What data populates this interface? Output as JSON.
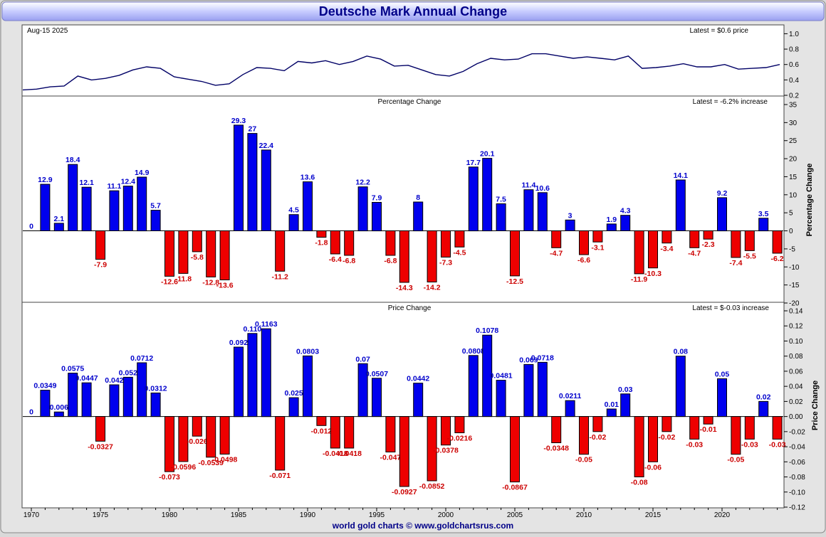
{
  "title": "Deutsche Mark Annual Change",
  "footer": "world gold charts © www.goldchartsrus.com",
  "colors": {
    "positive": "#0000ee",
    "negative": "#ee0000",
    "title": "#000088",
    "line": "#000066",
    "label_blue": "#0000cc",
    "label_red": "#cc0000"
  },
  "chart_data": [
    {
      "type": "line",
      "title": "",
      "date_label": "Aug-15  2025",
      "latest_label": "Latest = $0.6 price",
      "ylim": [
        0.2,
        1.05
      ],
      "yticks": [
        0.2,
        0.4,
        0.6,
        0.8,
        1.0
      ],
      "ytick_labels": [
        "0.2",
        "0.4",
        "0.6",
        "0.8",
        "1.0"
      ],
      "x": [
        1970,
        1971,
        1972,
        1973,
        1974,
        1975,
        1976,
        1977,
        1978,
        1979,
        1980,
        1981,
        1982,
        1983,
        1984,
        1985,
        1986,
        1987,
        1988,
        1989,
        1990,
        1991,
        1992,
        1993,
        1994,
        1995,
        1996,
        1997,
        1998,
        1999,
        2000,
        2001,
        2002,
        2003,
        2004,
        2005,
        2006,
        2007,
        2008,
        2009,
        2010,
        2011,
        2012,
        2013,
        2014,
        2015,
        2016,
        2017,
        2018,
        2019,
        2020,
        2021,
        2022,
        2023,
        2024,
        2025
      ],
      "values": [
        0.27,
        0.28,
        0.31,
        0.32,
        0.45,
        0.4,
        0.42,
        0.46,
        0.53,
        0.57,
        0.55,
        0.44,
        0.41,
        0.38,
        0.33,
        0.35,
        0.47,
        0.56,
        0.55,
        0.52,
        0.64,
        0.62,
        0.65,
        0.6,
        0.64,
        0.71,
        0.67,
        0.58,
        0.59,
        0.53,
        0.47,
        0.45,
        0.51,
        0.61,
        0.68,
        0.66,
        0.67,
        0.74,
        0.74,
        0.71,
        0.68,
        0.7,
        0.68,
        0.66,
        0.71,
        0.55,
        0.56,
        0.58,
        0.61,
        0.57,
        0.57,
        0.6,
        0.54,
        0.55,
        0.56,
        0.6
      ]
    },
    {
      "type": "bar",
      "title": "Percentage Change",
      "latest_label": "Latest = -6.2% increase",
      "ylabel": "Percentage Change",
      "ylim": [
        -20,
        35
      ],
      "yticks": [
        -20,
        -15,
        -10,
        -5,
        0,
        5,
        10,
        15,
        20,
        25,
        30,
        35
      ],
      "categories": [
        1970,
        1971,
        1972,
        1973,
        1974,
        1975,
        1976,
        1977,
        1978,
        1979,
        1980,
        1981,
        1982,
        1983,
        1984,
        1985,
        1986,
        1987,
        1988,
        1989,
        1990,
        1991,
        1992,
        1993,
        1994,
        1995,
        1996,
        1997,
        1998,
        1999,
        2000,
        2001,
        2002,
        2003,
        2004,
        2005,
        2006,
        2007,
        2008,
        2009,
        2010,
        2011,
        2012,
        2013,
        2014,
        2015,
        2016,
        2017,
        2018,
        2019,
        2020,
        2021,
        2022,
        2023,
        2024
      ],
      "values": [
        0,
        12.9,
        2.1,
        18.4,
        12.1,
        -7.9,
        11.1,
        12.4,
        14.9,
        5.7,
        -12.6,
        -11.8,
        -5.8,
        -12.8,
        -13.6,
        29.3,
        27,
        22.4,
        -11.2,
        4.5,
        13.6,
        -1.8,
        -6.4,
        -6.8,
        12.2,
        7.9,
        -6.8,
        -14.3,
        8,
        -14.2,
        -7.3,
        -4.5,
        17.7,
        20.1,
        7.5,
        -12.5,
        11.4,
        10.6,
        -4.7,
        3,
        -6.6,
        -3.1,
        1.9,
        4.3,
        -11.9,
        -10.3,
        -3.4,
        14.1,
        -4.7,
        -2.3,
        9.2,
        -7.4,
        -5.5,
        3.5,
        -6.2
      ],
      "labels": [
        "0",
        "12.9",
        "2.1",
        "18.4",
        "12.1",
        "-7.9",
        "11.1",
        "12.4",
        "14.9",
        "5.7",
        "-12.6",
        "-11.8",
        "-5.8",
        "-12.8",
        "-13.6",
        "29.3",
        "27",
        "22.4",
        "-11.2",
        "4.5",
        "13.6",
        "-1.8",
        "-6.4",
        "-6.8",
        "12.2",
        "7.9",
        "-6.8",
        "-14.3",
        "8",
        "-14.2",
        "-7.3",
        "-4.5",
        "17.7",
        "20.1",
        "7.5",
        "-12.5",
        "11.4",
        "10.6",
        "-4.7",
        "3",
        "-6.6",
        "-3.1",
        "1.9",
        "4.3",
        "-11.9",
        "-10.3",
        "-3.4",
        "14.1",
        "-4.7",
        "-2.3",
        "9.2",
        "-7.4",
        "-5.5",
        "3.5",
        "-6.2"
      ]
    },
    {
      "type": "bar",
      "title": "Price Change",
      "latest_label": "Latest = $-0.03 increase",
      "ylabel": "Price Change",
      "ylim": [
        -0.12,
        0.14
      ],
      "yticks": [
        -0.12,
        -0.1,
        -0.08,
        -0.06,
        -0.04,
        -0.02,
        0,
        0.02,
        0.04,
        0.06,
        0.08,
        0.1,
        0.12,
        0.14
      ],
      "ytick_labels": [
        "-0.12",
        "-0.10",
        "-0.08",
        "-0.06",
        "-0.04",
        "-0.02",
        "0.00",
        "0.02",
        "0.04",
        "0.06",
        "0.08",
        "0.10",
        "0.12",
        "0.14"
      ],
      "categories": [
        1970,
        1971,
        1972,
        1973,
        1974,
        1975,
        1976,
        1977,
        1978,
        1979,
        1980,
        1981,
        1982,
        1983,
        1984,
        1985,
        1986,
        1987,
        1988,
        1989,
        1990,
        1991,
        1992,
        1993,
        1994,
        1995,
        1996,
        1997,
        1998,
        1999,
        2000,
        2001,
        2002,
        2003,
        2004,
        2005,
        2006,
        2007,
        2008,
        2009,
        2010,
        2011,
        2012,
        2013,
        2014,
        2015,
        2016,
        2017,
        2018,
        2019,
        2020,
        2021,
        2022,
        2023,
        2024
      ],
      "values": [
        0,
        0.0349,
        0.006,
        0.0575,
        0.0447,
        -0.0327,
        0.042,
        0.052,
        0.0712,
        0.0312,
        -0.073,
        -0.0596,
        -0.026,
        -0.0539,
        -0.0498,
        0.092,
        0.11,
        0.1163,
        -0.071,
        0.025,
        0.0803,
        -0.012,
        -0.0418,
        -0.0418,
        0.07,
        0.0507,
        -0.047,
        -0.0927,
        0.0442,
        -0.0852,
        -0.0378,
        -0.0216,
        0.0808,
        0.1078,
        0.0481,
        -0.0867,
        0.069,
        0.0718,
        -0.0348,
        0.0211,
        -0.05,
        -0.02,
        0.01,
        0.03,
        -0.08,
        -0.06,
        -0.02,
        0.08,
        -0.03,
        -0.01,
        0.05,
        -0.05,
        -0.03,
        0.02,
        -0.03
      ],
      "labels": [
        "0",
        "0.0349",
        "0.006",
        "0.0575",
        "0.0447",
        "-0.0327",
        "0.042",
        "0.052",
        "0.0712",
        "0.0312",
        "-0.073",
        "-0.0596",
        "-0.026",
        "-0.0539",
        "-0.0498",
        "0.092",
        "0.110",
        "0.1163",
        "-0.071",
        "0.025",
        "0.0803",
        "-0.012",
        "-0.0418",
        "-0.0418",
        "0.07",
        "0.0507",
        "-0.047",
        "-0.0927",
        "0.0442",
        "-0.0852",
        "-0.0378",
        "-0.0216",
        "0.0808",
        "0.1078",
        "0.0481",
        "-0.0867",
        "0.069",
        "0.0718",
        "-0.0348",
        "0.0211",
        "-0.05",
        "-0.02",
        "0.01",
        "0.03",
        "-0.08",
        "-0.06",
        "-0.02",
        "0.08",
        "-0.03",
        "-0.01",
        "0.05",
        "-0.05",
        "-0.03",
        "0.02",
        "-0.03"
      ]
    }
  ],
  "x_axis": {
    "ticks": [
      1970,
      1975,
      1980,
      1985,
      1990,
      1995,
      2000,
      2005,
      2010,
      2015,
      2020
    ],
    "labels": [
      "1970",
      "1975",
      "1980",
      "1985",
      "1990",
      "1995",
      "2000",
      "2005",
      "2010",
      "2015",
      "2020"
    ]
  }
}
